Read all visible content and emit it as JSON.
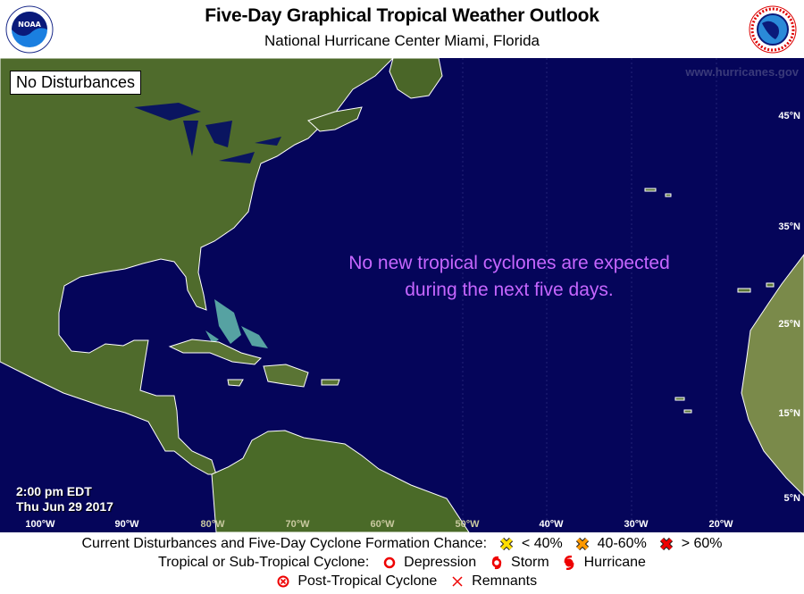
{
  "header": {
    "title": "Five-Day Graphical Tropical Weather Outlook",
    "subtitle": "National Hurricane Center  Miami, Florida",
    "left_logo": "NOAA",
    "right_logo": "NATIONAL WEATHER SERVICE"
  },
  "map": {
    "status_box": "No Disturbances",
    "website": "www.hurricanes.gov",
    "message_line1": "No new tropical cyclones are expected",
    "message_line2": "during the next five days.",
    "message_color": "#c666ff",
    "time": "2:00 pm EDT",
    "date": "Thu Jun 29 2017",
    "longitudes": [
      "100°W",
      "90°W",
      "80°W",
      "70°W",
      "60°W",
      "50°W",
      "40°W",
      "30°W",
      "20°W"
    ],
    "latitudes": [
      "45°N",
      "35°N",
      "25°N",
      "15°N",
      "5°N"
    ]
  },
  "legend": {
    "row1_label": "Current Disturbances and Five-Day Cyclone Formation Chance:",
    "chance_low": "< 40%",
    "chance_mid": "40-60%",
    "chance_high": "> 60%",
    "row2_label": "Tropical or Sub-Tropical Cyclone:",
    "depression": "Depression",
    "storm": "Storm",
    "hurricane": "Hurricane",
    "post_tropical": "Post-Tropical Cyclone",
    "remnants": "Remnants",
    "colors": {
      "low": "#ffdd00",
      "mid": "#ff9900",
      "high": "#ee0000",
      "cyclone": "#ee0000"
    }
  }
}
